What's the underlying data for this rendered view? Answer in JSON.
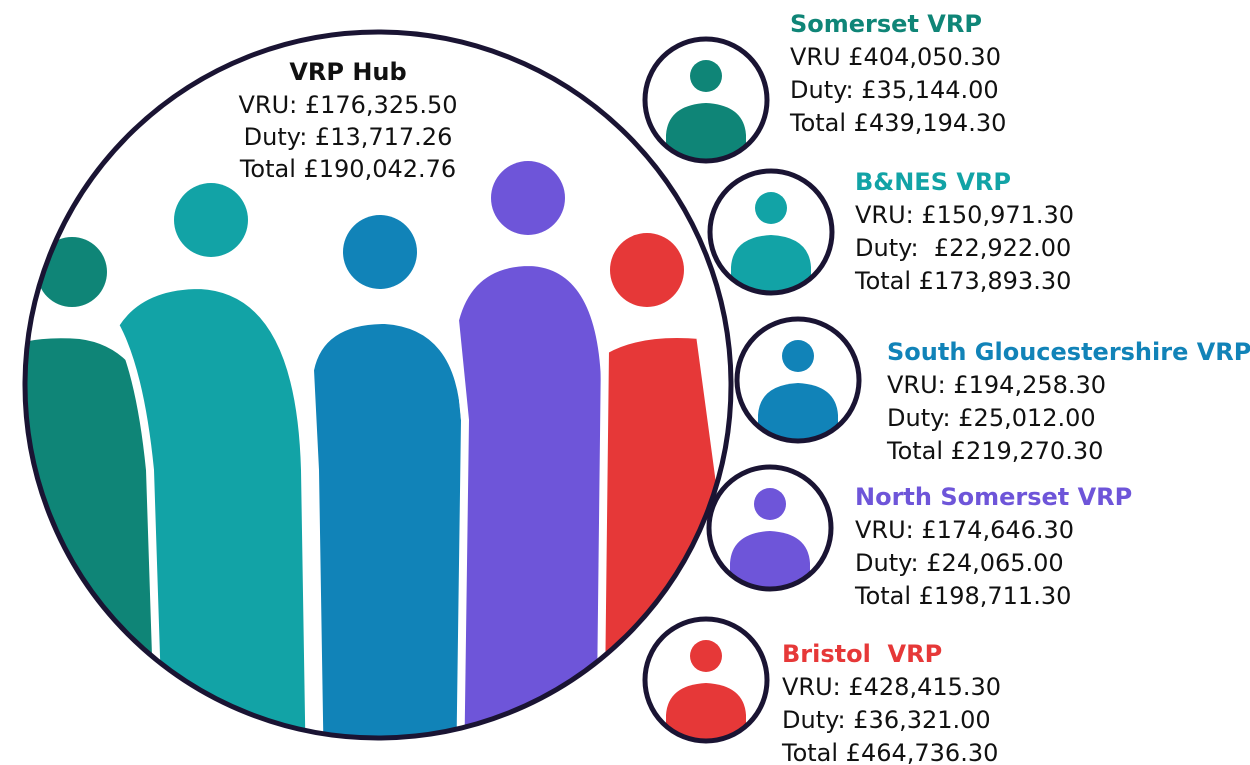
{
  "hub": {
    "title": "VRP Hub",
    "lines": [
      "VRU: £176,325.50",
      "Duty: £13,717.26",
      "Total £190,042.76"
    ]
  },
  "nodes": [
    {
      "title": "Somerset VRP",
      "lines": [
        "VRU £404,050.30",
        "Duty: £35,144.00",
        "Total £439,194.30"
      ]
    },
    {
      "title": "B&NES VRP",
      "lines": [
        "VRU: £150,971.30",
        "Duty:  £22,922.00",
        "Total £173,893.30"
      ]
    },
    {
      "title": "South Gloucestershire VRP",
      "lines": [
        "VRU: £194,258.30",
        "Duty: £25,012.00",
        "Total £219,270.30"
      ]
    },
    {
      "title": "North Somerset VRP",
      "lines": [
        "VRU: £174,646.30",
        "Duty: £24,065.00",
        "Total £198,711.30"
      ]
    },
    {
      "title": "Bristol  VRP",
      "lines": [
        "VRU: £428,415.30",
        "Duty: £36,321.00",
        "Total £464,736.30"
      ]
    }
  ]
}
